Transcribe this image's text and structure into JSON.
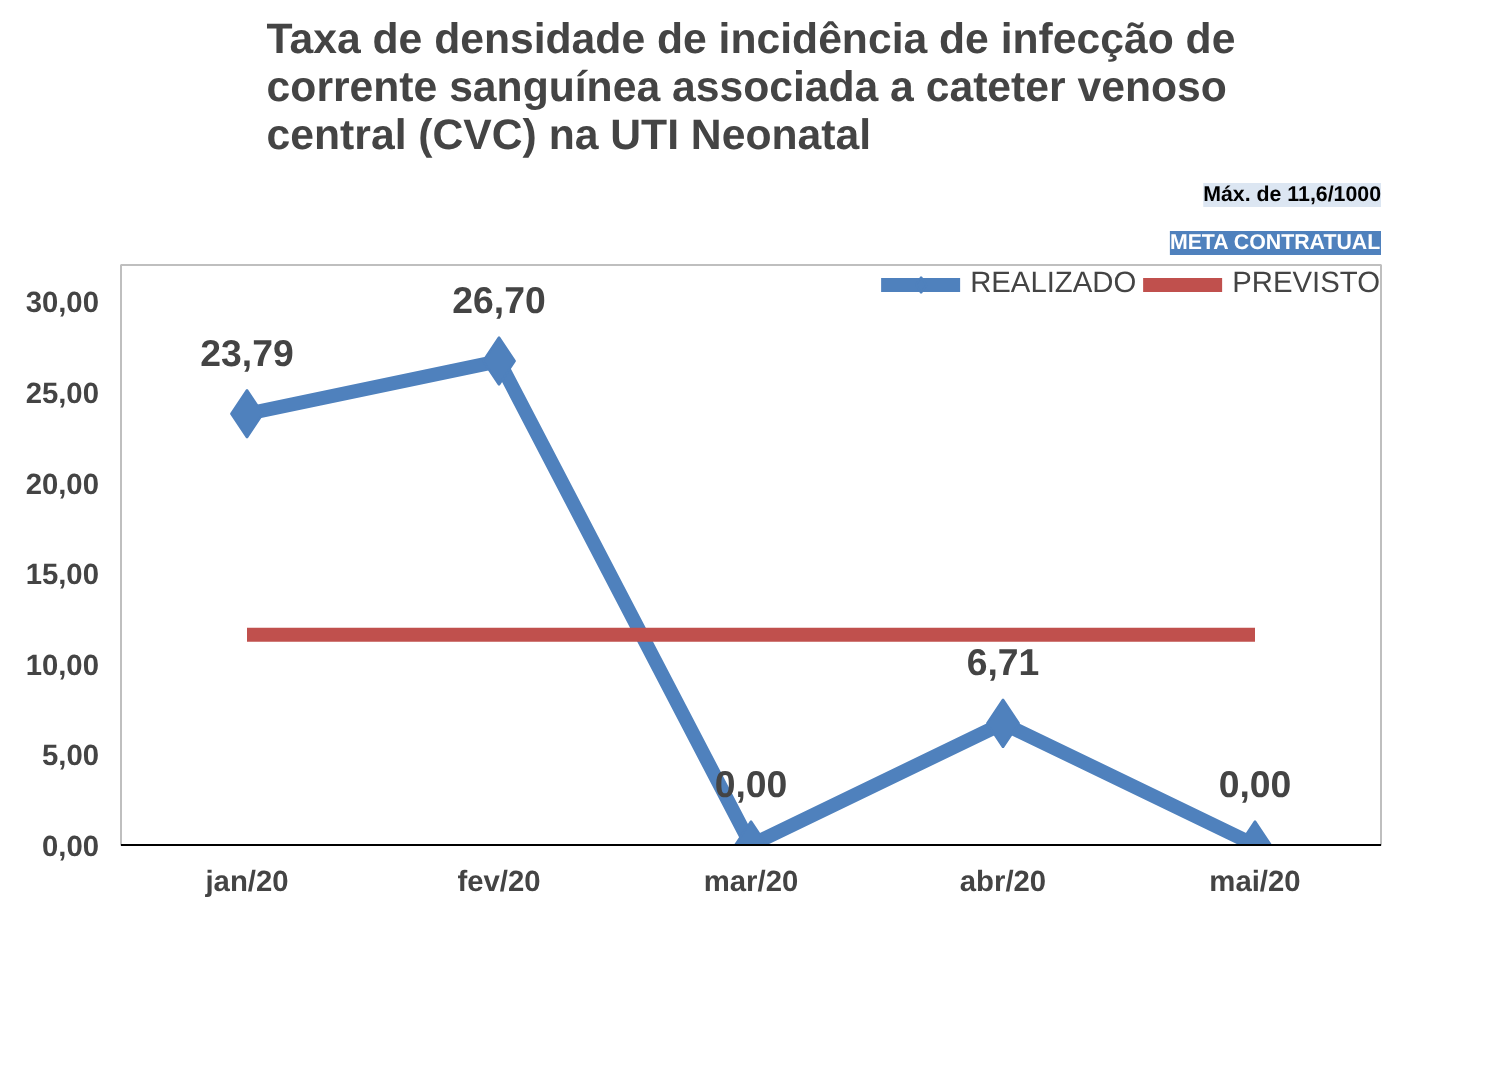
{
  "chart_data": {
    "type": "line",
    "title": "Taxa de densidade de incidência de infecção de\ncorrente sanguínea associada a cateter venoso\ncentral (CVC) na UTI Neonatal",
    "categories": [
      "jan/20",
      "fev/20",
      "mar/20",
      "abr/20",
      "mai/20"
    ],
    "series": [
      {
        "name": "REALIZADO",
        "color": "#4f81bd",
        "values": [
          23.79,
          26.7,
          0.0,
          6.71,
          0.0
        ],
        "value_labels": [
          "23,79",
          "26,70",
          "0,00",
          "6,71",
          "0,00"
        ],
        "marker": "diamond"
      },
      {
        "name": "PREVISTO",
        "color": "#c0504d",
        "values": [
          11.6,
          11.6,
          11.6,
          11.6,
          11.6
        ],
        "marker": "none"
      }
    ],
    "ylim": [
      0,
      32
    ],
    "yticks": [
      {
        "value": 0,
        "label": "0,00"
      },
      {
        "value": 5,
        "label": "5,00"
      },
      {
        "value": 10,
        "label": "10,00"
      },
      {
        "value": 15,
        "label": "15,00"
      },
      {
        "value": 20,
        "label": "20,00"
      },
      {
        "value": 25,
        "label": "25,00"
      },
      {
        "value": 30,
        "label": "30,00"
      }
    ],
    "grid": false,
    "legend": "top right",
    "annotations": [
      "META CONTRATUAL",
      "Máx. de 11,6/1000"
    ]
  }
}
